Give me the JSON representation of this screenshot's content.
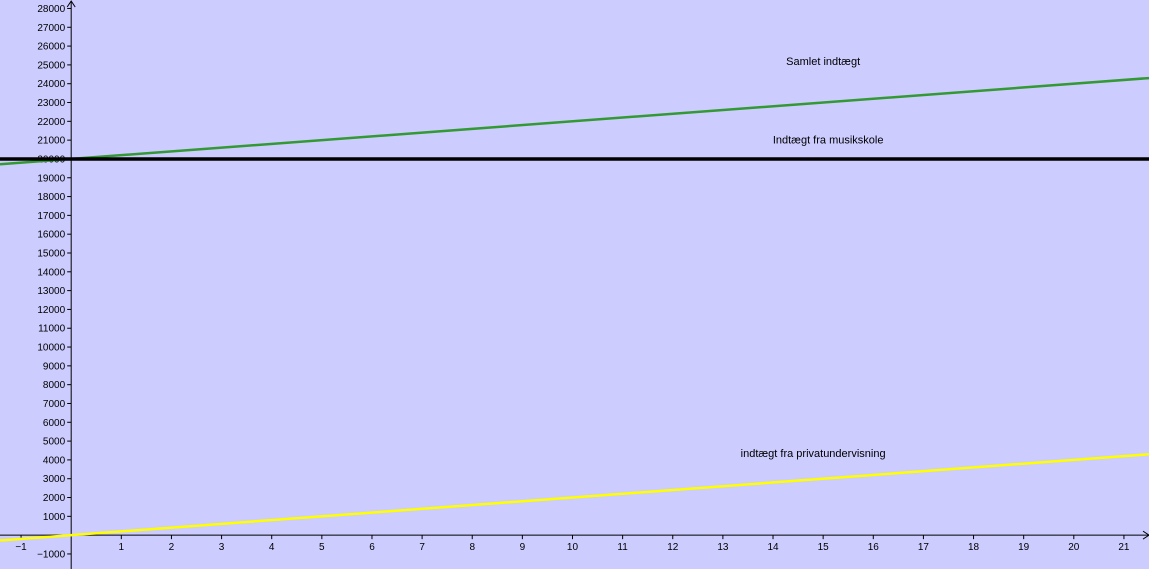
{
  "chart_data": {
    "type": "line",
    "title": "",
    "xlabel": "",
    "ylabel": "",
    "xlim": [
      -1.42,
      21.5
    ],
    "ylim": [
      -1800,
      28450
    ],
    "x_ticks": [
      -1,
      1,
      2,
      3,
      4,
      5,
      6,
      7,
      8,
      9,
      10,
      11,
      12,
      13,
      14,
      15,
      16,
      17,
      18,
      19,
      20,
      21
    ],
    "y_ticks": [
      -1000,
      1000,
      2000,
      3000,
      4000,
      5000,
      6000,
      7000,
      8000,
      9000,
      10000,
      11000,
      12000,
      13000,
      14000,
      15000,
      16000,
      17000,
      18000,
      19000,
      20000,
      21000,
      22000,
      23000,
      24000,
      25000,
      26000,
      27000,
      28000
    ],
    "x_tick_labels": [
      "−1",
      "1",
      "2",
      "3",
      "4",
      "5",
      "6",
      "7",
      "8",
      "9",
      "10",
      "11",
      "12",
      "13",
      "14",
      "15",
      "16",
      "17",
      "18",
      "19",
      "20",
      "21"
    ],
    "y_tick_labels": [
      "−1000",
      "1000",
      "2000",
      "3000",
      "4000",
      "5000",
      "6000",
      "7000",
      "8000",
      "9000",
      "10000",
      "11000",
      "12000",
      "13000",
      "14000",
      "15000",
      "16000",
      "17000",
      "18000",
      "19000",
      "20000",
      "21000",
      "22000",
      "23000",
      "24000",
      "25000",
      "26000",
      "27000",
      "28000"
    ],
    "grid": false,
    "series": [
      {
        "name": "Samlet indtægt",
        "color": "#339933",
        "intercept": 20000,
        "slope": 200,
        "label_at": [
          15,
          25000
        ]
      },
      {
        "name": "Indtægt fra musikskole",
        "color": "#000000",
        "intercept": 20000,
        "slope": 0,
        "label_at": [
          15.1,
          20820
        ]
      },
      {
        "name": "indtægt fra privatundervisning",
        "color": "#FFFF00",
        "intercept": 0,
        "slope": 200,
        "label_at": [
          14.8,
          4150
        ]
      }
    ]
  }
}
